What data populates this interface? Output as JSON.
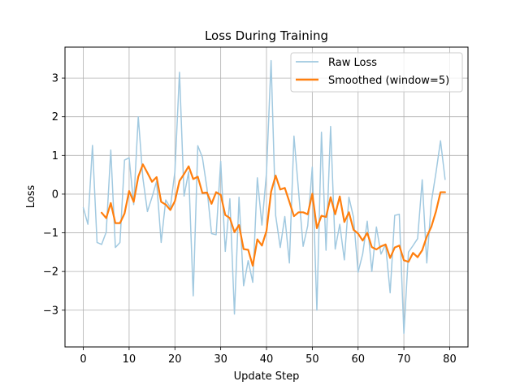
{
  "chart_data": {
    "type": "line",
    "title": "Loss During Training",
    "xlabel": "Update Step",
    "ylabel": "Loss",
    "xlim": [
      -4,
      84
    ],
    "ylim": [
      -3.95,
      3.8
    ],
    "xticks": [
      0,
      10,
      20,
      30,
      40,
      50,
      60,
      70,
      80
    ],
    "yticks": [
      -3,
      -2,
      -1,
      0,
      1,
      2,
      3
    ],
    "grid": true,
    "legend_position": "top-right",
    "series": [
      {
        "name": "Raw Loss",
        "color": "#a1c9e0",
        "x": [
          0,
          1,
          2,
          3,
          4,
          5,
          6,
          7,
          8,
          9,
          10,
          11,
          12,
          13,
          14,
          15,
          16,
          17,
          18,
          19,
          20,
          21,
          22,
          23,
          24,
          25,
          26,
          27,
          28,
          29,
          30,
          31,
          32,
          33,
          34,
          35,
          36,
          37,
          38,
          39,
          40,
          41,
          42,
          43,
          44,
          45,
          46,
          47,
          48,
          49,
          50,
          51,
          52,
          53,
          54,
          55,
          56,
          57,
          58,
          59,
          60,
          61,
          62,
          63,
          64,
          65,
          66,
          67,
          68,
          69,
          70,
          71,
          72,
          73,
          74,
          75,
          76,
          77,
          78,
          79
        ],
        "values": [
          -0.35,
          -0.78,
          1.26,
          -1.25,
          -1.3,
          -0.98,
          1.14,
          -1.38,
          -1.25,
          0.88,
          0.94,
          -0.27,
          2.0,
          0.42,
          -0.45,
          -0.08,
          0.33,
          -1.25,
          -0.15,
          -0.35,
          0.58,
          3.15,
          -0.05,
          0.58,
          -2.63,
          1.25,
          0.95,
          0.15,
          -1.02,
          -1.05,
          0.85,
          -1.48,
          -0.12,
          -3.1,
          -0.08,
          -2.37,
          -1.72,
          -2.28,
          0.42,
          -0.8,
          0.55,
          3.45,
          -0.55,
          -1.38,
          -0.58,
          -1.78,
          1.5,
          0.08,
          -1.35,
          -0.82,
          0.7,
          -3.0,
          1.6,
          -1.45,
          1.75,
          -1.42,
          -0.78,
          -1.7,
          -0.08,
          -0.6,
          -2.02,
          -1.55,
          -0.7,
          -2.0,
          -0.85,
          -1.55,
          -1.3,
          -2.55,
          -0.55,
          -0.52,
          -3.6,
          -1.5,
          -1.33,
          -1.15,
          0.37,
          -1.78,
          -0.2,
          0.55,
          1.38,
          0.38
        ]
      },
      {
        "name": "Smoothed (window=5)",
        "color": "#ff7f0e",
        "x": [
          4,
          5,
          6,
          7,
          8,
          9,
          10,
          11,
          12,
          13,
          14,
          15,
          16,
          17,
          18,
          19,
          20,
          21,
          22,
          23,
          24,
          25,
          26,
          27,
          28,
          29,
          30,
          31,
          32,
          33,
          34,
          35,
          36,
          37,
          38,
          39,
          40,
          41,
          42,
          43,
          44,
          45,
          46,
          47,
          48,
          49,
          50,
          51,
          52,
          53,
          54,
          55,
          56,
          57,
          58,
          59,
          60,
          61,
          62,
          63,
          64,
          65,
          66,
          67,
          68,
          69,
          70,
          71,
          72,
          73,
          74,
          75,
          76,
          77,
          78,
          79
        ],
        "values": [
          -0.48,
          -0.62,
          -0.23,
          -0.75,
          -0.75,
          -0.5,
          0.08,
          -0.2,
          0.45,
          0.77,
          0.55,
          0.32,
          0.44,
          -0.2,
          -0.27,
          -0.41,
          -0.18,
          0.34,
          0.52,
          0.72,
          0.39,
          0.45,
          0.03,
          0.04,
          -0.25,
          0.05,
          -0.02,
          -0.54,
          -0.62,
          -0.98,
          -0.8,
          -1.42,
          -1.44,
          -1.85,
          -1.17,
          -1.33,
          -0.95,
          0.06,
          0.48,
          0.12,
          0.16,
          -0.2,
          -0.57,
          -0.47,
          -0.47,
          -0.52,
          0.01,
          -0.88,
          -0.56,
          -0.59,
          -0.08,
          -0.52,
          -0.06,
          -0.72,
          -0.47,
          -0.92,
          -1.02,
          -1.2,
          -1.0,
          -1.37,
          -1.43,
          -1.35,
          -1.3,
          -1.65,
          -1.38,
          -1.33,
          -1.71,
          -1.75,
          -1.52,
          -1.63,
          -1.45,
          -1.1,
          -0.84,
          -0.45,
          0.05,
          0.05
        ]
      }
    ]
  }
}
